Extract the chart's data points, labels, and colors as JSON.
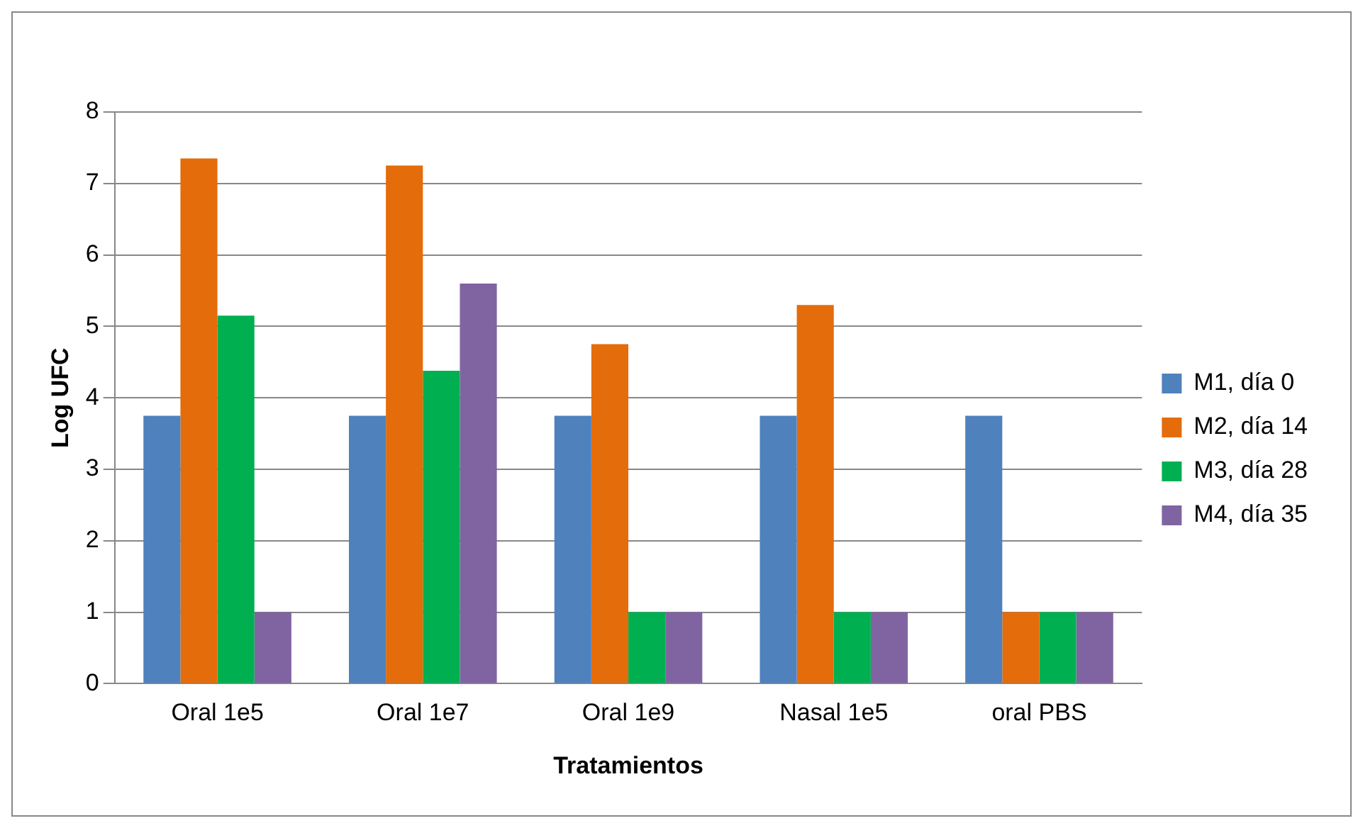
{
  "chart_data": {
    "type": "bar",
    "xlabel": "Tratamientos",
    "ylabel": "Log UFC",
    "categories": [
      "Oral 1e5",
      "Oral 1e7",
      "Oral 1e9",
      "Nasal 1e5",
      "oral PBS"
    ],
    "series": [
      {
        "name": "M1, día 0",
        "color": "#4f81bd",
        "values": [
          3.75,
          3.75,
          3.75,
          3.75,
          3.75
        ]
      },
      {
        "name": "M2, día 14",
        "color": "#e46c0a",
        "values": [
          7.35,
          7.25,
          4.75,
          5.3,
          1
        ]
      },
      {
        "name": "M3, día 28",
        "color": "#00b050",
        "values": [
          5.15,
          4.38,
          1,
          1,
          1
        ]
      },
      {
        "name": "M4, día 35",
        "color": "#8064a2",
        "values": [
          1,
          5.6,
          1,
          1,
          1
        ]
      }
    ],
    "ylim": [
      0,
      8
    ],
    "yticks": [
      0,
      1,
      2,
      3,
      4,
      5,
      6,
      7,
      8
    ],
    "grid": "y",
    "legend": "right"
  }
}
